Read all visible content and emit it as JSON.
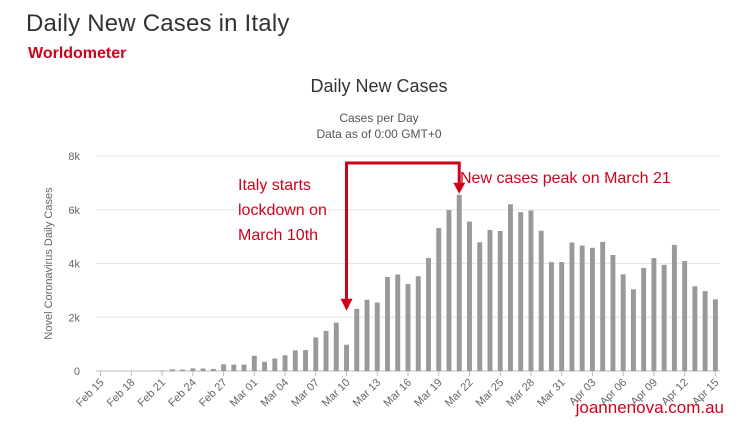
{
  "header": {
    "title": "Daily New Cases in Italy",
    "source": "Worldometer"
  },
  "watermark": "joannenova.com.au",
  "annotations": {
    "lockdown": [
      "Italy starts",
      "lockdown on",
      "March 10th"
    ],
    "peak": "New cases peak on March 21",
    "color": "#d0021b"
  },
  "chart_data": {
    "type": "bar",
    "title": "Daily New Cases",
    "subtitle": [
      "Cases per Day",
      "Data as of 0:00 GMT+0"
    ],
    "xlabel": "",
    "ylabel": "Novel Coronavirus Daily Cases",
    "ylim": [
      0,
      8000
    ],
    "yticks": [
      0,
      2000,
      4000,
      6000,
      8000
    ],
    "ytick_labels": [
      "0",
      "2k",
      "4k",
      "6k",
      "8k"
    ],
    "grid": true,
    "bar_color": "#999999",
    "categories": [
      "Feb 15",
      "Feb 16",
      "Feb 17",
      "Feb 18",
      "Feb 19",
      "Feb 20",
      "Feb 21",
      "Feb 22",
      "Feb 23",
      "Feb 24",
      "Feb 25",
      "Feb 26",
      "Feb 27",
      "Feb 28",
      "Feb 29",
      "Mar 01",
      "Mar 02",
      "Mar 03",
      "Mar 04",
      "Mar 05",
      "Mar 06",
      "Mar 07",
      "Mar 08",
      "Mar 09",
      "Mar 10",
      "Mar 11",
      "Mar 12",
      "Mar 13",
      "Mar 14",
      "Mar 15",
      "Mar 16",
      "Mar 17",
      "Mar 18",
      "Mar 19",
      "Mar 20",
      "Mar 21",
      "Mar 22",
      "Mar 23",
      "Mar 24",
      "Mar 25",
      "Mar 26",
      "Mar 27",
      "Mar 28",
      "Mar 29",
      "Mar 30",
      "Mar 31",
      "Apr 01",
      "Apr 02",
      "Apr 03",
      "Apr 04",
      "Apr 05",
      "Apr 06",
      "Apr 07",
      "Apr 08",
      "Apr 09",
      "Apr 10",
      "Apr 11",
      "Apr 12",
      "Apr 13",
      "Apr 14",
      "Apr 15"
    ],
    "tick_labels": [
      "Feb 15",
      "Feb 18",
      "Feb 21",
      "Feb 24",
      "Feb 27",
      "Mar 01",
      "Mar 04",
      "Mar 07",
      "Mar 10",
      "Mar 13",
      "Mar 16",
      "Mar 19",
      "Mar 22",
      "Mar 25",
      "Mar 28",
      "Mar 31",
      "Apr 03",
      "Apr 06",
      "Apr 09",
      "Apr 12",
      "Apr 15"
    ],
    "values": [
      0,
      0,
      0,
      0,
      0,
      0,
      17,
      62,
      53,
      97,
      93,
      78,
      250,
      238,
      240,
      566,
      342,
      466,
      587,
      769,
      778,
      1247,
      1492,
      1797,
      977,
      2313,
      2651,
      2547,
      3497,
      3590,
      3233,
      3526,
      4207,
      5322,
      5986,
      6557,
      5560,
      4789,
      5249,
      5210,
      6203,
      5909,
      5974,
      5217,
      4050,
      4053,
      4782,
      4668,
      4585,
      4805,
      4316,
      3599,
      3039,
      3836,
      4204,
      3951,
      4694,
      4092,
      3153,
      2972,
      2667
    ]
  }
}
